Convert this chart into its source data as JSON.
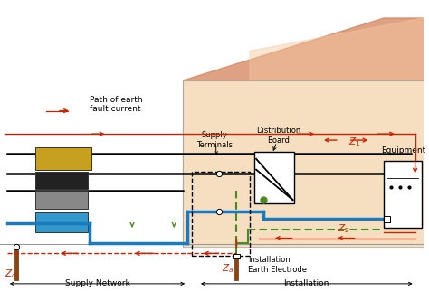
{
  "bg_color": "#ffffff",
  "house_bg": "#f5dfc0",
  "roof_color": "#d4825a",
  "red_line_color": "#cc2200",
  "blue_line_color": "#1a7abf",
  "green_line_color": "#4a8a20",
  "brown_color": "#8B4513",
  "gold_color": "#c8a020",
  "gray_color": "#888888",
  "blue_box_color": "#3399cc",
  "supply_network_label": "Supply Network",
  "installation_label": "Installation",
  "supply_terminals_label": "Supply\nTerminals",
  "distribution_board_label": "Distribution\nBoard",
  "equipment_label": "Equipment",
  "path_label": "Path of earth\nfault current",
  "earth_electrode_label": "Installation\nEarth Electrode"
}
